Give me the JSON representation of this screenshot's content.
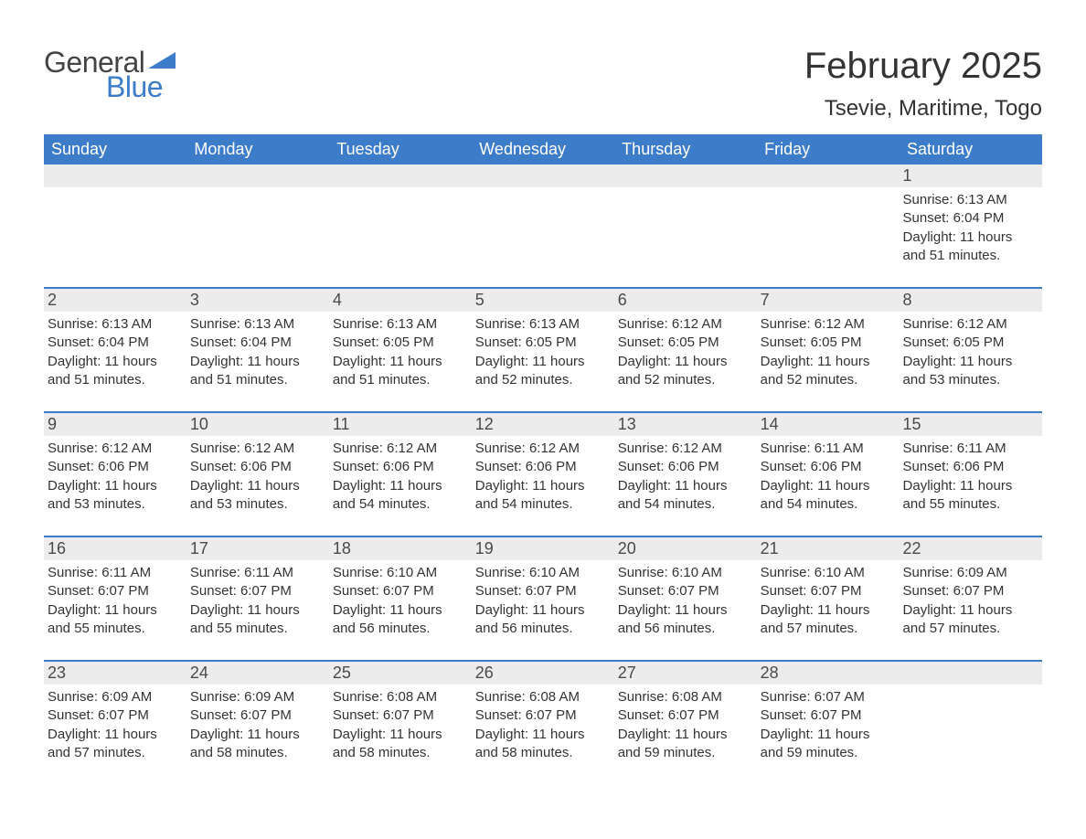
{
  "brand": {
    "word1": "General",
    "word2": "Blue",
    "word1_color": "#444444",
    "word2_color": "#3d7cc9"
  },
  "title": "February 2025",
  "location": "Tsevie, Maritime, Togo",
  "colors": {
    "header_bg": "#3d7cc9",
    "header_text": "#ffffff",
    "daynum_bg": "#ececec",
    "cell_border": "#3d7cc9",
    "body_text": "#333333"
  },
  "typography": {
    "title_fontsize": 40,
    "location_fontsize": 24,
    "header_fontsize": 18,
    "body_fontsize": 15
  },
  "days_of_week": [
    "Sunday",
    "Monday",
    "Tuesday",
    "Wednesday",
    "Thursday",
    "Friday",
    "Saturday"
  ],
  "weeks": [
    [
      {
        "empty": true
      },
      {
        "empty": true
      },
      {
        "empty": true
      },
      {
        "empty": true
      },
      {
        "empty": true
      },
      {
        "empty": true
      },
      {
        "day": "1",
        "sunrise": "Sunrise: 6:13 AM",
        "sunset": "Sunset: 6:04 PM",
        "daylight": "Daylight: 11 hours and 51 minutes."
      }
    ],
    [
      {
        "day": "2",
        "sunrise": "Sunrise: 6:13 AM",
        "sunset": "Sunset: 6:04 PM",
        "daylight": "Daylight: 11 hours and 51 minutes."
      },
      {
        "day": "3",
        "sunrise": "Sunrise: 6:13 AM",
        "sunset": "Sunset: 6:04 PM",
        "daylight": "Daylight: 11 hours and 51 minutes."
      },
      {
        "day": "4",
        "sunrise": "Sunrise: 6:13 AM",
        "sunset": "Sunset: 6:05 PM",
        "daylight": "Daylight: 11 hours and 51 minutes."
      },
      {
        "day": "5",
        "sunrise": "Sunrise: 6:13 AM",
        "sunset": "Sunset: 6:05 PM",
        "daylight": "Daylight: 11 hours and 52 minutes."
      },
      {
        "day": "6",
        "sunrise": "Sunrise: 6:12 AM",
        "sunset": "Sunset: 6:05 PM",
        "daylight": "Daylight: 11 hours and 52 minutes."
      },
      {
        "day": "7",
        "sunrise": "Sunrise: 6:12 AM",
        "sunset": "Sunset: 6:05 PM",
        "daylight": "Daylight: 11 hours and 52 minutes."
      },
      {
        "day": "8",
        "sunrise": "Sunrise: 6:12 AM",
        "sunset": "Sunset: 6:05 PM",
        "daylight": "Daylight: 11 hours and 53 minutes."
      }
    ],
    [
      {
        "day": "9",
        "sunrise": "Sunrise: 6:12 AM",
        "sunset": "Sunset: 6:06 PM",
        "daylight": "Daylight: 11 hours and 53 minutes."
      },
      {
        "day": "10",
        "sunrise": "Sunrise: 6:12 AM",
        "sunset": "Sunset: 6:06 PM",
        "daylight": "Daylight: 11 hours and 53 minutes."
      },
      {
        "day": "11",
        "sunrise": "Sunrise: 6:12 AM",
        "sunset": "Sunset: 6:06 PM",
        "daylight": "Daylight: 11 hours and 54 minutes."
      },
      {
        "day": "12",
        "sunrise": "Sunrise: 6:12 AM",
        "sunset": "Sunset: 6:06 PM",
        "daylight": "Daylight: 11 hours and 54 minutes."
      },
      {
        "day": "13",
        "sunrise": "Sunrise: 6:12 AM",
        "sunset": "Sunset: 6:06 PM",
        "daylight": "Daylight: 11 hours and 54 minutes."
      },
      {
        "day": "14",
        "sunrise": "Sunrise: 6:11 AM",
        "sunset": "Sunset: 6:06 PM",
        "daylight": "Daylight: 11 hours and 54 minutes."
      },
      {
        "day": "15",
        "sunrise": "Sunrise: 6:11 AM",
        "sunset": "Sunset: 6:06 PM",
        "daylight": "Daylight: 11 hours and 55 minutes."
      }
    ],
    [
      {
        "day": "16",
        "sunrise": "Sunrise: 6:11 AM",
        "sunset": "Sunset: 6:07 PM",
        "daylight": "Daylight: 11 hours and 55 minutes."
      },
      {
        "day": "17",
        "sunrise": "Sunrise: 6:11 AM",
        "sunset": "Sunset: 6:07 PM",
        "daylight": "Daylight: 11 hours and 55 minutes."
      },
      {
        "day": "18",
        "sunrise": "Sunrise: 6:10 AM",
        "sunset": "Sunset: 6:07 PM",
        "daylight": "Daylight: 11 hours and 56 minutes."
      },
      {
        "day": "19",
        "sunrise": "Sunrise: 6:10 AM",
        "sunset": "Sunset: 6:07 PM",
        "daylight": "Daylight: 11 hours and 56 minutes."
      },
      {
        "day": "20",
        "sunrise": "Sunrise: 6:10 AM",
        "sunset": "Sunset: 6:07 PM",
        "daylight": "Daylight: 11 hours and 56 minutes."
      },
      {
        "day": "21",
        "sunrise": "Sunrise: 6:10 AM",
        "sunset": "Sunset: 6:07 PM",
        "daylight": "Daylight: 11 hours and 57 minutes."
      },
      {
        "day": "22",
        "sunrise": "Sunrise: 6:09 AM",
        "sunset": "Sunset: 6:07 PM",
        "daylight": "Daylight: 11 hours and 57 minutes."
      }
    ],
    [
      {
        "day": "23",
        "sunrise": "Sunrise: 6:09 AM",
        "sunset": "Sunset: 6:07 PM",
        "daylight": "Daylight: 11 hours and 57 minutes."
      },
      {
        "day": "24",
        "sunrise": "Sunrise: 6:09 AM",
        "sunset": "Sunset: 6:07 PM",
        "daylight": "Daylight: 11 hours and 58 minutes."
      },
      {
        "day": "25",
        "sunrise": "Sunrise: 6:08 AM",
        "sunset": "Sunset: 6:07 PM",
        "daylight": "Daylight: 11 hours and 58 minutes."
      },
      {
        "day": "26",
        "sunrise": "Sunrise: 6:08 AM",
        "sunset": "Sunset: 6:07 PM",
        "daylight": "Daylight: 11 hours and 58 minutes."
      },
      {
        "day": "27",
        "sunrise": "Sunrise: 6:08 AM",
        "sunset": "Sunset: 6:07 PM",
        "daylight": "Daylight: 11 hours and 59 minutes."
      },
      {
        "day": "28",
        "sunrise": "Sunrise: 6:07 AM",
        "sunset": "Sunset: 6:07 PM",
        "daylight": "Daylight: 11 hours and 59 minutes."
      },
      {
        "empty": true
      }
    ]
  ]
}
